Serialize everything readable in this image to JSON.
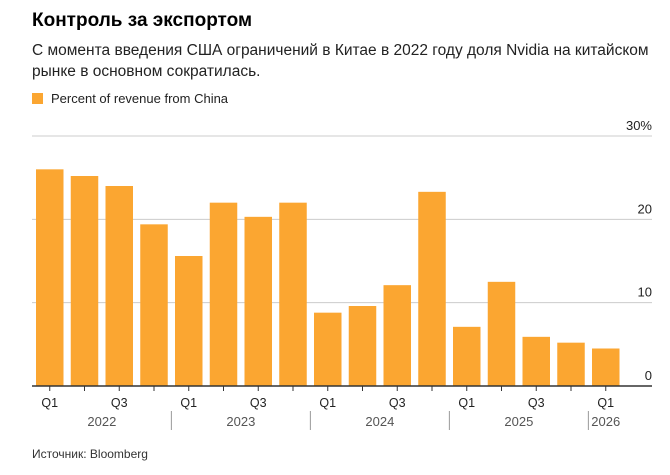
{
  "header": {
    "title": "Контроль за экспортом",
    "subtitle": "С момента введения США ограничений в Китае в 2022 году доля Nvidia на китайском рынке в основном сократилась."
  },
  "legend": {
    "label": "Percent of revenue from China",
    "color": "#FBA631"
  },
  "source": "Источник: Bloomberg",
  "colors": {
    "bar": "#FBA631",
    "grid": "#cccccc",
    "axis": "#333333"
  },
  "chart_data": {
    "type": "bar",
    "categories": [
      "Q1 2022",
      "Q2 2022",
      "Q3 2022",
      "Q4 2022",
      "Q1 2023",
      "Q2 2023",
      "Q3 2023",
      "Q4 2023",
      "Q1 2024",
      "Q2 2024",
      "Q3 2024",
      "Q4 2024",
      "Q1 2025",
      "Q2 2025",
      "Q3 2025",
      "Q4 2025",
      "Q1 2026"
    ],
    "series": [
      {
        "name": "Percent of revenue from China",
        "values": [
          26,
          25.2,
          24,
          19.4,
          15.6,
          22,
          20.3,
          22,
          8.8,
          9.6,
          12.1,
          23.3,
          7.1,
          12.5,
          5.9,
          5.2,
          4.5
        ]
      }
    ],
    "ylim": [
      0,
      30
    ],
    "yticks": [
      0,
      10,
      20,
      30
    ],
    "ytick_labels": [
      "0",
      "10",
      "20",
      "30%"
    ],
    "xtick_labels": [
      "Q1",
      "",
      "Q3",
      "",
      "Q1",
      "",
      "Q3",
      "",
      "Q1",
      "",
      "Q3",
      "",
      "Q1",
      "",
      "Q3",
      "",
      "Q1"
    ],
    "years": [
      {
        "label": "2022",
        "start": 0,
        "end": 3
      },
      {
        "label": "2023",
        "start": 4,
        "end": 7
      },
      {
        "label": "2024",
        "start": 8,
        "end": 11
      },
      {
        "label": "2025",
        "start": 12,
        "end": 15
      },
      {
        "label": "2026",
        "start": 16,
        "end": 16
      }
    ],
    "grid": true,
    "y_axis_side": "right",
    "legend_position": "top-left"
  }
}
